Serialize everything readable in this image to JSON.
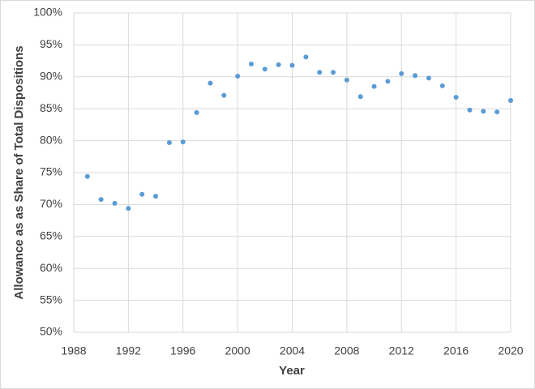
{
  "chart_data": {
    "type": "scatter",
    "xlabel": "Year",
    "ylabel": "Allowance as as Share of Total Dispositions",
    "x": [
      1989,
      1990,
      1991,
      1992,
      1993,
      1994,
      1995,
      1996,
      1997,
      1998,
      1999,
      2000,
      2001,
      2002,
      2003,
      2004,
      2005,
      2006,
      2007,
      2008,
      2009,
      2010,
      2011,
      2012,
      2013,
      2014,
      2015,
      2016,
      2017,
      2018,
      2019,
      2020
    ],
    "series": [
      {
        "color": "#5b9bd5",
        "values": [
          74.4,
          70.8,
          70.2,
          69.4,
          71.6,
          71.3,
          79.7,
          79.8,
          84.4,
          89.0,
          87.1,
          90.1,
          92.0,
          91.2,
          91.9,
          91.8,
          93.1,
          90.7,
          90.7,
          89.5,
          86.9,
          88.5,
          89.3,
          90.5,
          90.2,
          89.8,
          88.6,
          86.8,
          84.8,
          84.6,
          84.5,
          86.3
        ]
      }
    ],
    "xlim": [
      1988,
      2020
    ],
    "xticks": [
      1988,
      1992,
      1996,
      2000,
      2004,
      2008,
      2012,
      2016,
      2020
    ],
    "ylim": [
      50,
      100
    ],
    "yticks": [
      {
        "value": 50,
        "label": "50%"
      },
      {
        "value": 55,
        "label": "55%"
      },
      {
        "value": 60,
        "label": "60%"
      },
      {
        "value": 65,
        "label": "65%"
      },
      {
        "value": 70,
        "label": "70%"
      },
      {
        "value": 75,
        "label": "75%"
      },
      {
        "value": 80,
        "label": "80%"
      },
      {
        "value": 85,
        "label": "85%"
      },
      {
        "value": 90,
        "label": "90%"
      },
      {
        "value": 95,
        "label": "95%"
      },
      {
        "value": 100,
        "label": "100%"
      }
    ],
    "grid": true
  }
}
